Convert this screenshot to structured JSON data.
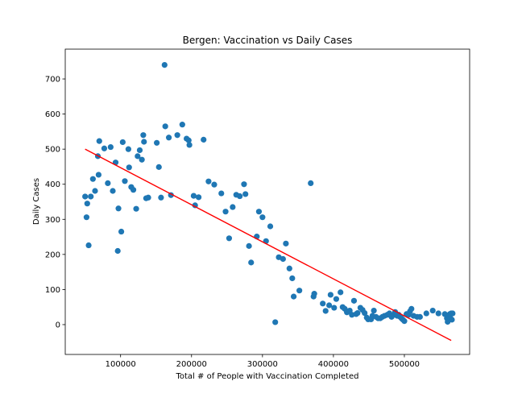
{
  "chart_data": {
    "type": "scatter",
    "title": "Bergen: Vaccination vs Daily Cases",
    "xlabel": "Total # of People with Vaccination Completed",
    "ylabel": "Daily Cases",
    "xlim": [
      22000,
      592000
    ],
    "ylim": [
      -85,
      785
    ],
    "xticks": [
      100000,
      200000,
      300000,
      400000,
      500000
    ],
    "xtick_labels": [
      "100000",
      "200000",
      "300000",
      "400000",
      "500000"
    ],
    "yticks": [
      0,
      100,
      200,
      300,
      400,
      500,
      600,
      700
    ],
    "ytick_labels": [
      "0",
      "100",
      "200",
      "300",
      "400",
      "500",
      "600",
      "700"
    ],
    "grid": false,
    "point_color": "#1f77b4",
    "line_color": "#ff0000",
    "trend_line": {
      "x": [
        50000,
        566000
      ],
      "y": [
        500,
        -45
      ]
    },
    "points": [
      [
        50000,
        365
      ],
      [
        52000,
        306
      ],
      [
        53000,
        345
      ],
      [
        55000,
        226
      ],
      [
        58000,
        365
      ],
      [
        61000,
        415
      ],
      [
        64000,
        381
      ],
      [
        68000,
        480
      ],
      [
        69000,
        427
      ],
      [
        70000,
        523
      ],
      [
        77000,
        502
      ],
      [
        82000,
        403
      ],
      [
        86000,
        506
      ],
      [
        89000,
        381
      ],
      [
        93000,
        462
      ],
      [
        96000,
        210
      ],
      [
        97000,
        331
      ],
      [
        101000,
        265
      ],
      [
        103000,
        520
      ],
      [
        106000,
        409
      ],
      [
        111000,
        500
      ],
      [
        112000,
        448
      ],
      [
        115000,
        392
      ],
      [
        118000,
        384
      ],
      [
        122000,
        330
      ],
      [
        124000,
        480
      ],
      [
        127000,
        497
      ],
      [
        130000,
        470
      ],
      [
        132000,
        540
      ],
      [
        133000,
        521
      ],
      [
        136000,
        360
      ],
      [
        139000,
        362
      ],
      [
        151000,
        518
      ],
      [
        154000,
        449
      ],
      [
        157000,
        362
      ],
      [
        162000,
        740
      ],
      [
        163000,
        565
      ],
      [
        168000,
        533
      ],
      [
        171000,
        369
      ],
      [
        180000,
        540
      ],
      [
        187000,
        570
      ],
      [
        193000,
        530
      ],
      [
        196000,
        525
      ],
      [
        197000,
        512
      ],
      [
        203000,
        367
      ],
      [
        205000,
        340
      ],
      [
        210000,
        363
      ],
      [
        217000,
        527
      ],
      [
        224000,
        408
      ],
      [
        232000,
        399
      ],
      [
        242000,
        374
      ],
      [
        248000,
        322
      ],
      [
        253000,
        246
      ],
      [
        258000,
        335
      ],
      [
        263000,
        370
      ],
      [
        268000,
        366
      ],
      [
        274000,
        400
      ],
      [
        276000,
        372
      ],
      [
        281000,
        224
      ],
      [
        284000,
        177
      ],
      [
        292000,
        251
      ],
      [
        295000,
        322
      ],
      [
        300000,
        306
      ],
      [
        305000,
        238
      ],
      [
        311000,
        280
      ],
      [
        318000,
        7
      ],
      [
        323000,
        192
      ],
      [
        329000,
        187
      ],
      [
        333000,
        231
      ],
      [
        338000,
        160
      ],
      [
        342000,
        132
      ],
      [
        344000,
        80
      ],
      [
        352000,
        97
      ],
      [
        368000,
        403
      ],
      [
        372000,
        80
      ],
      [
        373000,
        88
      ],
      [
        385000,
        60
      ],
      [
        389000,
        39
      ],
      [
        394000,
        55
      ],
      [
        396000,
        85
      ],
      [
        401000,
        48
      ],
      [
        404000,
        73
      ],
      [
        410000,
        92
      ],
      [
        413000,
        50
      ],
      [
        416000,
        45
      ],
      [
        419000,
        35
      ],
      [
        423000,
        40
      ],
      [
        426000,
        28
      ],
      [
        429000,
        68
      ],
      [
        432000,
        30
      ],
      [
        434000,
        33
      ],
      [
        438000,
        48
      ],
      [
        441000,
        42
      ],
      [
        444000,
        33
      ],
      [
        447000,
        20
      ],
      [
        449000,
        15
      ],
      [
        453000,
        15
      ],
      [
        455000,
        25
      ],
      [
        457000,
        40
      ],
      [
        460000,
        22
      ],
      [
        463000,
        18
      ],
      [
        466000,
        18
      ],
      [
        469000,
        22
      ],
      [
        472000,
        25
      ],
      [
        476000,
        28
      ],
      [
        479000,
        32
      ],
      [
        482000,
        22
      ],
      [
        485000,
        28
      ],
      [
        487000,
        36
      ],
      [
        490000,
        25
      ],
      [
        492000,
        28
      ],
      [
        494000,
        22
      ],
      [
        496000,
        18
      ],
      [
        498000,
        14
      ],
      [
        500000,
        10
      ],
      [
        503000,
        30
      ],
      [
        506000,
        28
      ],
      [
        508000,
        38
      ],
      [
        510000,
        45
      ],
      [
        513000,
        25
      ],
      [
        518000,
        22
      ],
      [
        522000,
        22
      ],
      [
        531000,
        32
      ],
      [
        540000,
        40
      ],
      [
        548000,
        32
      ],
      [
        557000,
        30
      ],
      [
        560000,
        18
      ],
      [
        561000,
        8
      ],
      [
        562000,
        12
      ],
      [
        563000,
        25
      ],
      [
        564000,
        30
      ],
      [
        565000,
        18
      ],
      [
        566000,
        32
      ],
      [
        567000,
        14
      ],
      [
        568000,
        32
      ]
    ]
  }
}
